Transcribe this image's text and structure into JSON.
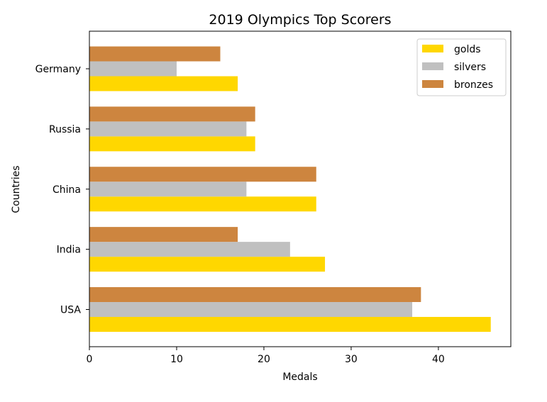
{
  "chart_data": {
    "type": "bar",
    "orientation": "horizontal",
    "title": "2019 Olympics Top Scorers",
    "xlabel": "Medals",
    "ylabel": "Countries",
    "categories": [
      "USA",
      "India",
      "China",
      "Russia",
      "Germany"
    ],
    "series": [
      {
        "name": "golds",
        "color": "#FFD700",
        "values": [
          46,
          27,
          26,
          19,
          17
        ]
      },
      {
        "name": "silvers",
        "color": "#C0C0C0",
        "values": [
          37,
          23,
          18,
          18,
          10
        ]
      },
      {
        "name": "bronzes",
        "color": "#CD853F",
        "values": [
          38,
          17,
          26,
          19,
          15
        ]
      }
    ],
    "xlim": [
      0,
      48.3
    ],
    "xticks": [
      0,
      10,
      20,
      30,
      40
    ],
    "grid": false,
    "legend_position": "top-right"
  }
}
